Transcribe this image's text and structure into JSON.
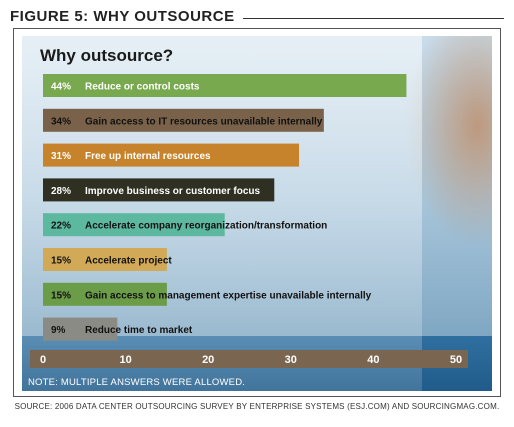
{
  "figure_label": "FIGURE 5: WHY OUTSOURCE",
  "note": "NOTE: MULTIPLE ANSWERS WERE ALLOWED.",
  "source": "SOURCE: 2006 DATA CENTER OUTSOURCING SURVEY BY ENTERPRISE SYSTEMS (ESJ.COM) AND SOURCINGMAG.COM.",
  "chart_data": {
    "type": "bar",
    "orientation": "horizontal",
    "title": "Why outsource?",
    "xlim": [
      0,
      50
    ],
    "xticks": [
      0,
      10,
      20,
      30,
      40,
      50
    ],
    "grid": false,
    "categories": [
      "Reduce or control costs",
      "Gain access to IT resources unavailable internally",
      "Free up internal resources",
      "Improve business or customer focus",
      "Accelerate company reorganization/transformation",
      "Accelerate project",
      "Gain access to management expertise unavailable internally",
      "Reduce time to market"
    ],
    "values": [
      44,
      34,
      31,
      28,
      22,
      15,
      15,
      9
    ],
    "value_labels": [
      "44%",
      "34%",
      "31%",
      "28%",
      "22%",
      "15%",
      "15%",
      "9%"
    ],
    "bar_colors": [
      "#79a94f",
      "#7a624a",
      "#c6832b",
      "#2f2f22",
      "#5cb9a0",
      "#d2a957",
      "#6b9c48",
      "#8b8b86"
    ],
    "label_colors": [
      "#ffffff",
      "#111111",
      "#ffffff",
      "#ffffff",
      "#111111",
      "#111111",
      "#111111",
      "#111111"
    ]
  }
}
